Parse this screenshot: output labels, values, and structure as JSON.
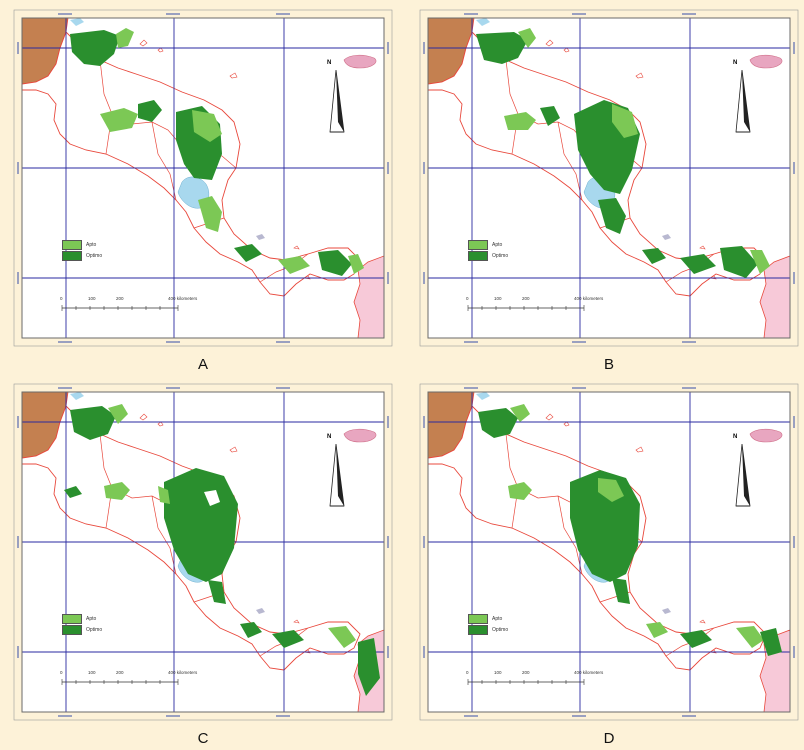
{
  "panels": [
    {
      "id": "A",
      "letter": "A"
    },
    {
      "id": "B",
      "letter": "B"
    },
    {
      "id": "C",
      "letter": "C"
    },
    {
      "id": "D",
      "letter": "D"
    }
  ],
  "legend": {
    "items": [
      {
        "label": "Apto",
        "color": "#7cc855"
      },
      {
        "label": "Optimo",
        "color": "#2a8f2e"
      }
    ]
  },
  "scale_bar": {
    "ticks": [
      "0",
      "100",
      "200",
      "400 kilometers"
    ]
  },
  "north_arrow": {
    "label": "N"
  },
  "colors": {
    "background": "#fdf2d8",
    "frame": "#6a6a6a",
    "grid": "#2a2aa0",
    "country_border": "#e8483c",
    "mexico_fill": "#c48050",
    "colombia_fill": "#f7c9d8",
    "jamaica_fill": "#e8a6c0",
    "lake_fill": "#a8d8ee",
    "apto": "#7cc855",
    "optimo": "#2a8f2e"
  },
  "icons": {
    "north_arrow": "north-arrow-icon",
    "scale_bar": "scale-bar-icon"
  }
}
